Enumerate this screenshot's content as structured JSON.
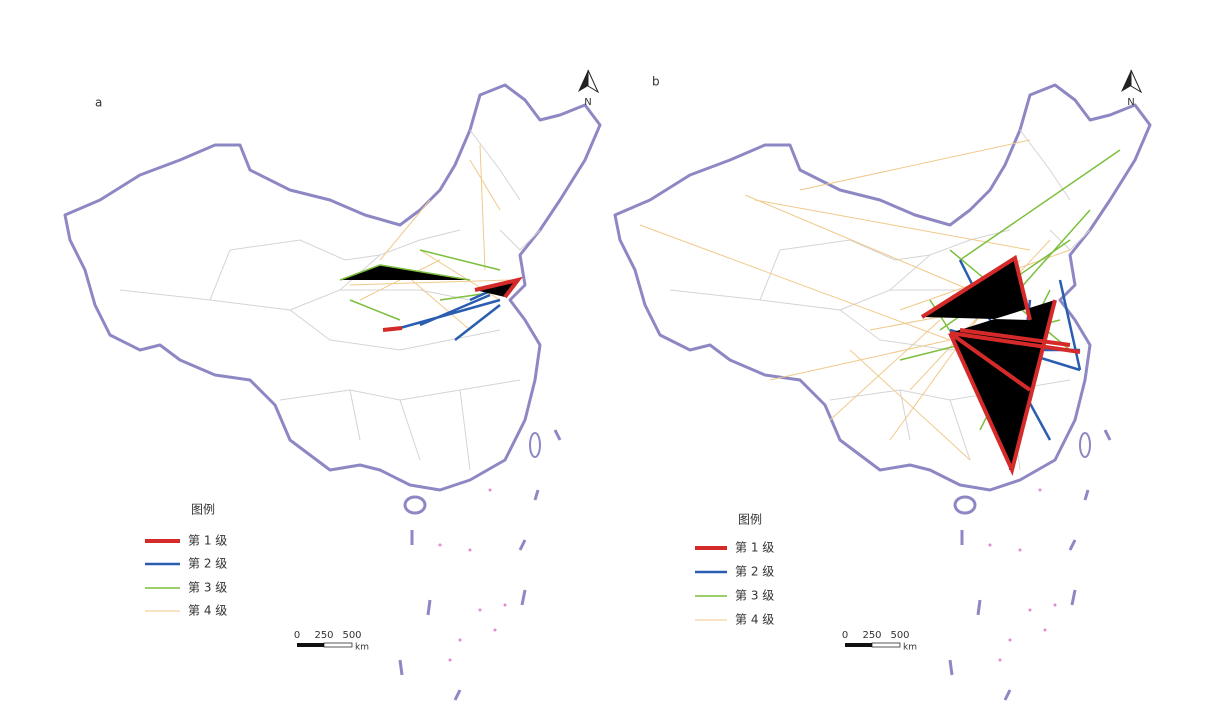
{
  "panels": [
    {
      "label": "a",
      "north": "N",
      "legend": {
        "title": "图例",
        "items": [
          "第 1 级",
          "第 2 级",
          "第 3 级",
          "第 4 级"
        ]
      },
      "scale": {
        "ticks": [
          "0",
          "250",
          "500"
        ],
        "unit": "km"
      }
    },
    {
      "label": "b",
      "north": "N",
      "legend": {
        "title": "图例",
        "items": [
          "第 1 级",
          "第 2 级",
          "第 3 级",
          "第 4 级"
        ]
      },
      "scale": {
        "ticks": [
          "0",
          "250",
          "500"
        ],
        "unit": "km"
      }
    }
  ]
}
